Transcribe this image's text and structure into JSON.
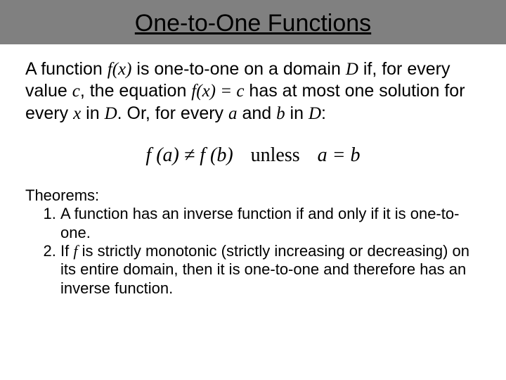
{
  "title": "One-to-One Functions",
  "definition": {
    "part1": "A function ",
    "fx": "f(x)",
    "part2": " is one-to-one on a domain ",
    "D": "D",
    "part3": " if, for every value ",
    "c": "c",
    "part4": ", the equation ",
    "eq": "f(x) = c",
    "part5": " has at most one solution for every ",
    "x": "x",
    "part6": " in ",
    "D2": "D",
    "part7": ". Or, for every ",
    "a": "a",
    "part8": " and ",
    "b": "b",
    "part9": "  in ",
    "D3": "D",
    "part10": ":"
  },
  "formula": {
    "lhs": "f (a) ≠ f (b)",
    "unless": "unless",
    "rhs": "a = b"
  },
  "theorems": {
    "heading": "Theorems:",
    "items": [
      "A function has an inverse function if and only if it is one-to-one.",
      {
        "pre": "If ",
        "f": "f",
        "post": " is strictly monotonic (strictly increasing or decreasing) on its entire domain, then it is one-to-one and therefore has an inverse function."
      }
    ]
  },
  "colors": {
    "title_bg": "#808080",
    "background": "#ffffff",
    "text": "#000000"
  }
}
